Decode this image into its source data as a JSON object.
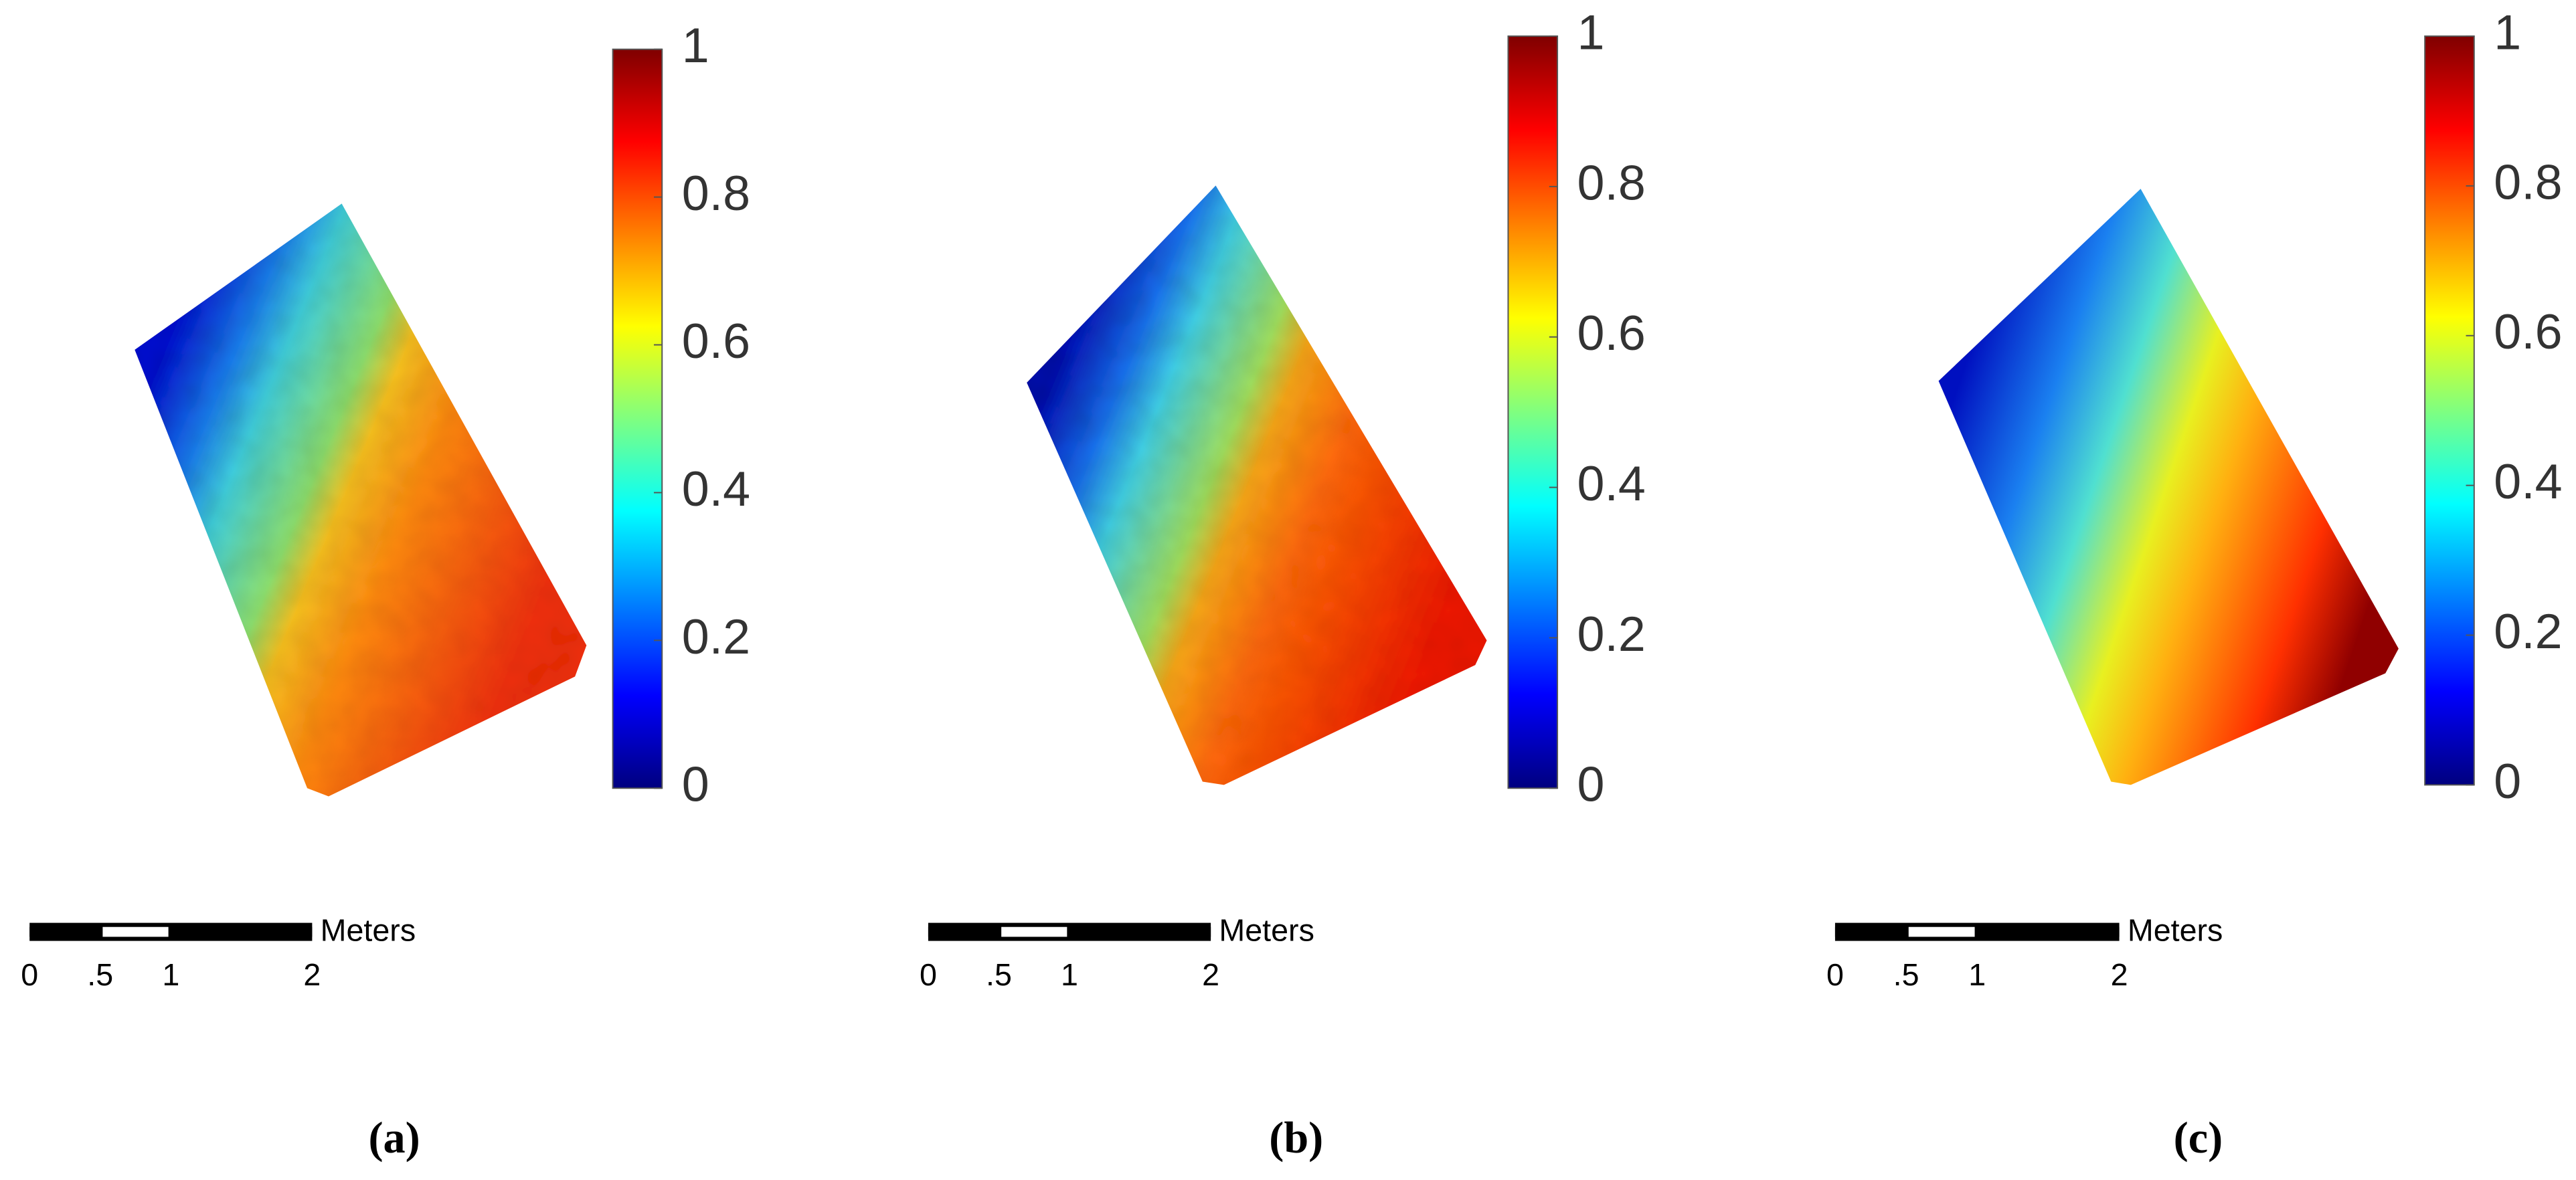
{
  "panels": [
    {
      "label": "(a)",
      "colorbar": {
        "clim": [
          0,
          1
        ],
        "ticks": [
          0,
          0.2,
          0.4,
          0.6,
          0.8,
          1
        ]
      },
      "scalebar": {
        "ticks": [
          0,
          {
            "value": 0.5,
            "label": ".5"
          },
          1,
          2
        ],
        "unit": "Meters"
      }
    },
    {
      "label": "(b)",
      "colorbar": {
        "clim": [
          0,
          1
        ],
        "ticks": [
          0,
          0.2,
          0.4,
          0.6,
          0.8,
          1
        ]
      },
      "scalebar": {
        "ticks": [
          0,
          {
            "value": 0.5,
            "label": ".5"
          },
          1,
          2
        ],
        "unit": "Meters"
      }
    },
    {
      "label": "(c)",
      "colorbar": {
        "clim": [
          0,
          1
        ],
        "ticks": [
          0,
          0.2,
          0.4,
          0.6,
          0.8,
          1
        ]
      },
      "scalebar": {
        "ticks": [
          0,
          {
            "value": 0.5,
            "label": ".5"
          },
          1,
          2
        ],
        "unit": "Meters"
      }
    }
  ]
}
